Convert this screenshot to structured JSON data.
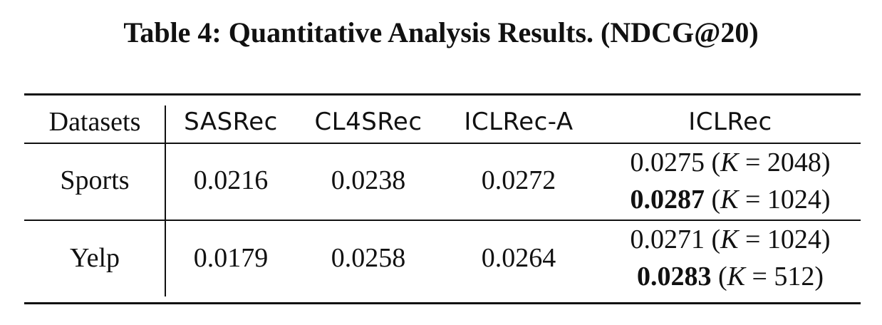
{
  "caption": "Table 4: Quantitative Analysis Results. (NDCG@20)",
  "table": {
    "headers": [
      "Datasets",
      "SASRec",
      "CL4SRec",
      "ICLRec-A",
      "ICLRec"
    ],
    "rows": [
      {
        "dataset": "Sports",
        "sasrec": "0.0216",
        "cl4srec": "0.0238",
        "iclrec_a": "0.0272",
        "iclrec": [
          {
            "value": "0.0275",
            "k_label": "K",
            "k_eq": "=",
            "k_value": "2048",
            "bold": false
          },
          {
            "value": "0.0287",
            "k_label": "K",
            "k_eq": "=",
            "k_value": "1024",
            "bold": true
          }
        ]
      },
      {
        "dataset": "Yelp",
        "sasrec": "0.0179",
        "cl4srec": "0.0258",
        "iclrec_a": "0.0264",
        "iclrec": [
          {
            "value": "0.0271",
            "k_label": "K",
            "k_eq": "=",
            "k_value": "1024",
            "bold": false
          },
          {
            "value": "0.0283",
            "k_label": "K",
            "k_eq": "=",
            "k_value": "512",
            "bold": true
          }
        ]
      }
    ]
  }
}
